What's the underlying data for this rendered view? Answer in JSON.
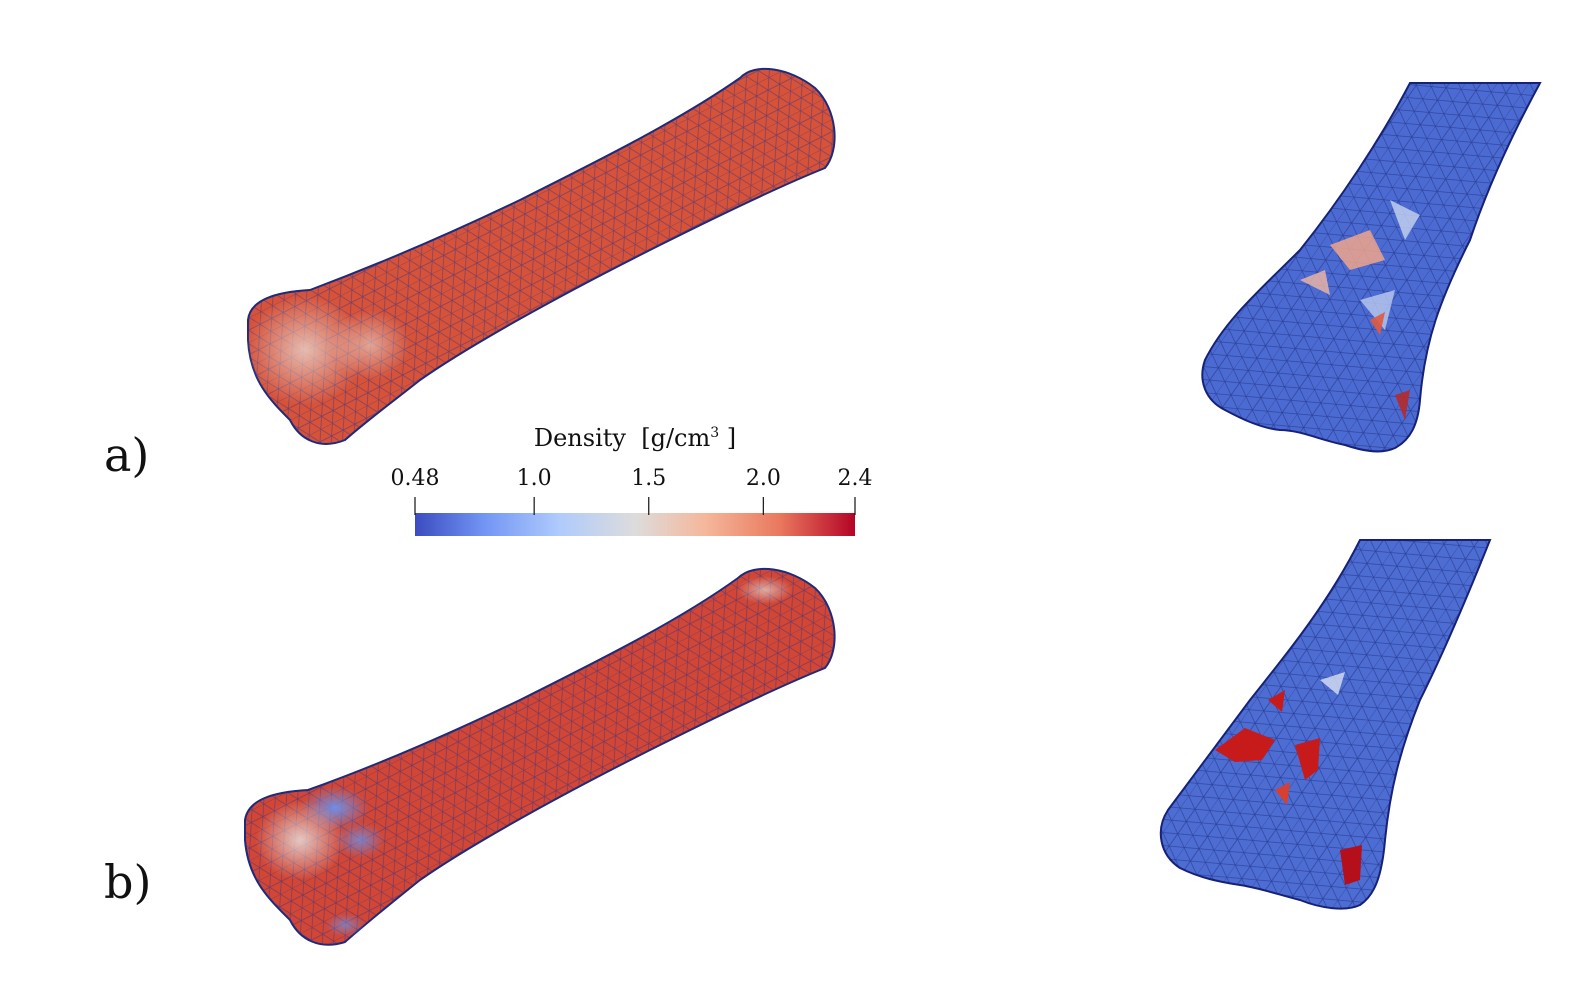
{
  "panels": [
    {
      "label": "a)"
    },
    {
      "label": "b)"
    }
  ],
  "colorbar": {
    "title": "Density",
    "unit_open": "[g/cm",
    "unit_exp": "3",
    "unit_close": " ]",
    "ticks": [
      "0.48",
      "1.0",
      "1.5",
      "2.0",
      "2.4"
    ],
    "tick_values": [
      0.48,
      1.0,
      1.5,
      2.0,
      2.4
    ],
    "range": [
      0.48,
      2.4
    ],
    "colors": [
      "#3b4cc0",
      "#7396f5",
      "#b0cbfc",
      "#dddcdc",
      "#f5b79b",
      "#e9785d",
      "#b40426"
    ]
  },
  "colors": {
    "high_density": "#d44a36",
    "low_density": "#4566cf",
    "mesh_edge": "#1b2a8a"
  }
}
